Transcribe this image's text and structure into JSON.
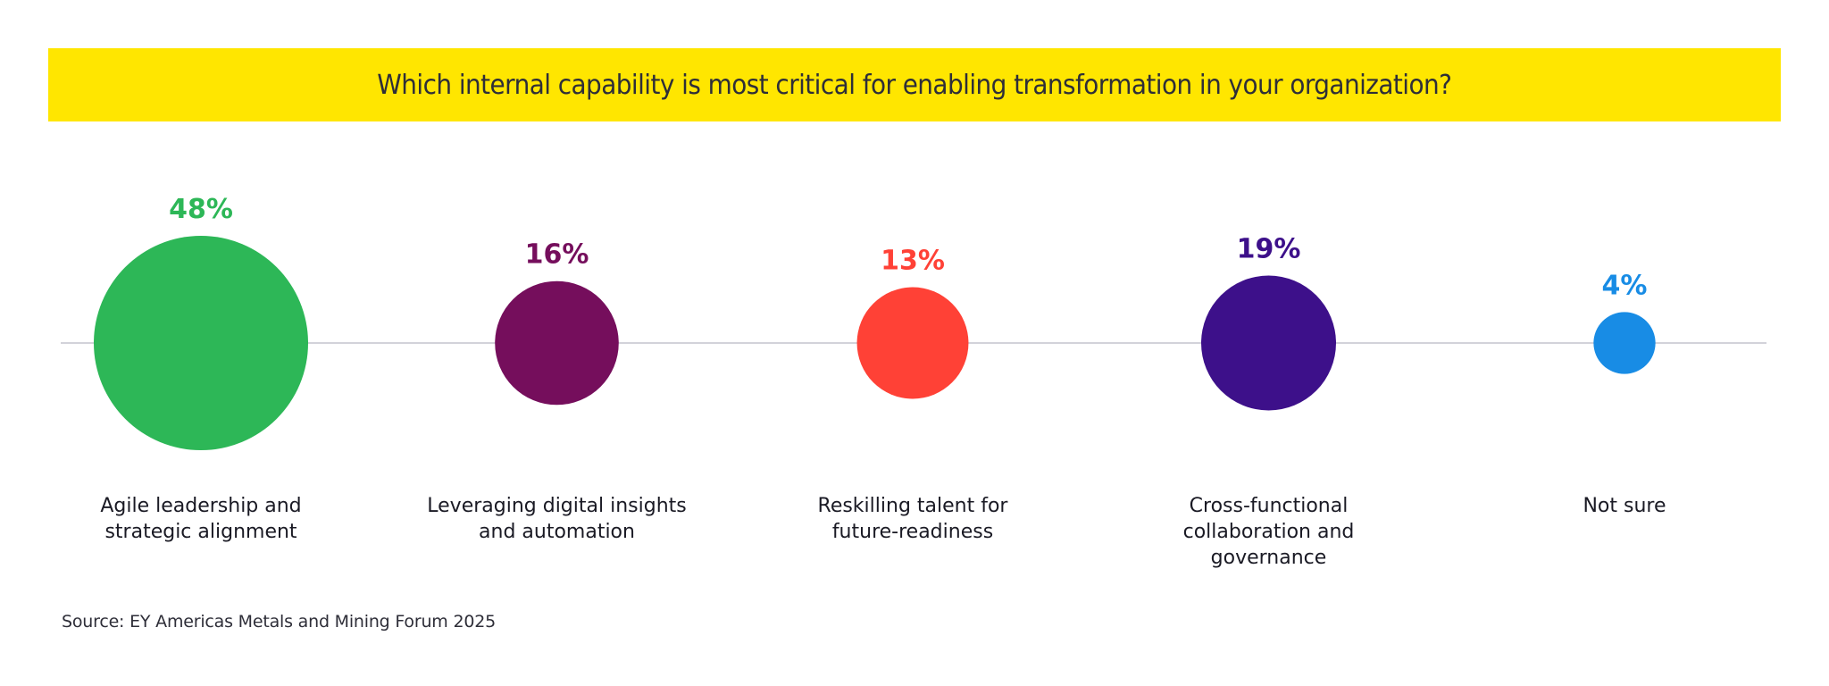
{
  "chart_data": {
    "type": "bubble",
    "title": "Which internal capability is most critical for enabling transformation in your organization?",
    "xlabel": "",
    "ylabel": "",
    "value_unit": "%",
    "categories": [
      "Agile leadership and strategic alignment",
      "Leveraging digital insights and automation",
      "Reskilling talent for future-readiness",
      "Cross-functional collaboration and governance",
      "Not sure"
    ],
    "category_lines": [
      [
        "Agile leadership and",
        "strategic alignment"
      ],
      [
        "Leveraging digital insights",
        "and automation"
      ],
      [
        "Reskilling talent for",
        "future-readiness"
      ],
      [
        "Cross-functional",
        "collaboration and",
        "governance"
      ],
      [
        "Not sure"
      ]
    ],
    "values": [
      48,
      16,
      13,
      19,
      4
    ],
    "value_labels": [
      "48%",
      "16%",
      "13%",
      "19%",
      "4%"
    ],
    "colors": [
      "#2DB757",
      "#750E5C",
      "#FF4136",
      "#3D108A",
      "#188CE5"
    ],
    "grid": false,
    "legend": "none",
    "source": "Source: EY Americas Metals and Mining Forum 2025"
  },
  "theme": {
    "banner_color": "#FFE600",
    "baseline_color": "#C4C4CD",
    "text_color": "#2E2E38"
  }
}
